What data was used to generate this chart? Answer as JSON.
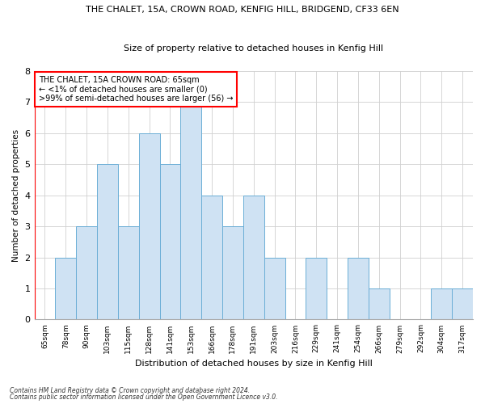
{
  "title1": "THE CHALET, 15A, CROWN ROAD, KENFIG HILL, BRIDGEND, CF33 6EN",
  "title2": "Size of property relative to detached houses in Kenfig Hill",
  "xlabel": "Distribution of detached houses by size in Kenfig Hill",
  "ylabel": "Number of detached properties",
  "categories": [
    "65sqm",
    "78sqm",
    "90sqm",
    "103sqm",
    "115sqm",
    "128sqm",
    "141sqm",
    "153sqm",
    "166sqm",
    "178sqm",
    "191sqm",
    "203sqm",
    "216sqm",
    "229sqm",
    "241sqm",
    "254sqm",
    "266sqm",
    "279sqm",
    "292sqm",
    "304sqm",
    "317sqm"
  ],
  "values": [
    0,
    2,
    3,
    5,
    3,
    6,
    5,
    7,
    4,
    3,
    4,
    2,
    0,
    2,
    0,
    2,
    1,
    0,
    0,
    1,
    1
  ],
  "bar_color": "#cfe2f3",
  "bar_edge_color": "#6baed6",
  "highlight_index": 0,
  "annotation_title": "THE CHALET, 15A CROWN ROAD: 65sqm",
  "annotation_line1": "← <1% of detached houses are smaller (0)",
  "annotation_line2": ">99% of semi-detached houses are larger (56) →",
  "ylim": [
    0,
    8
  ],
  "yticks": [
    0,
    1,
    2,
    3,
    4,
    5,
    6,
    7,
    8
  ],
  "footnote1": "Contains HM Land Registry data © Crown copyright and database right 2024.",
  "footnote2": "Contains public sector information licensed under the Open Government Licence v3.0.",
  "background_color": "#ffffff",
  "grid_color": "#d0d0d0"
}
